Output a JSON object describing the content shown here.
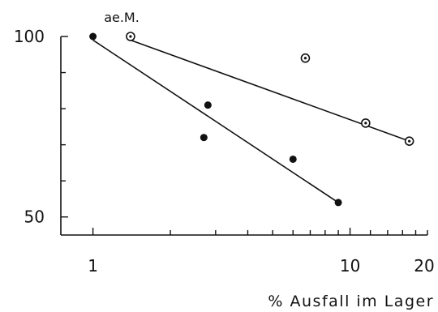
{
  "chart_data": {
    "type": "scatter",
    "title": "",
    "xlabel": "% Ausfall im Lager",
    "ylabel": "ae.M.",
    "x_scale": "log",
    "xlim": [
      0.75,
      20
    ],
    "ylim": [
      45,
      100
    ],
    "x_ticks": [
      1,
      10,
      20
    ],
    "y_ticks": [
      50,
      100
    ],
    "grid": false,
    "legend": "none",
    "series": [
      {
        "marker": "filled-circle",
        "color": "#111111",
        "points": [
          {
            "x": 1.0,
            "y": 100
          },
          {
            "x": 2.8,
            "y": 81
          },
          {
            "x": 2.7,
            "y": 72
          },
          {
            "x": 6.0,
            "y": 66
          },
          {
            "x": 9.0,
            "y": 54
          }
        ],
        "trend": [
          {
            "x": 1.0,
            "y": 99
          },
          {
            "x": 9.0,
            "y": 54
          }
        ]
      },
      {
        "marker": "ring-dot",
        "color": "#111111",
        "points": [
          {
            "x": 1.4,
            "y": 100
          },
          {
            "x": 6.7,
            "y": 94
          },
          {
            "x": 11.5,
            "y": 76
          },
          {
            "x": 17.0,
            "y": 71
          }
        ],
        "trend": [
          {
            "x": 1.4,
            "y": 99
          },
          {
            "x": 17.0,
            "y": 71
          }
        ]
      }
    ]
  }
}
